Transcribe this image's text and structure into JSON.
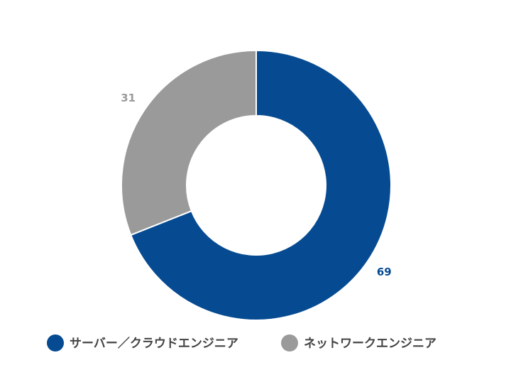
{
  "chart_data": {
    "type": "donut",
    "categories": [
      "サーバー／クラウドエンジニア",
      "ネットワークエンジニア"
    ],
    "values": [
      69,
      31
    ],
    "colors": [
      "#064b92",
      "#9a9a9a"
    ]
  }
}
